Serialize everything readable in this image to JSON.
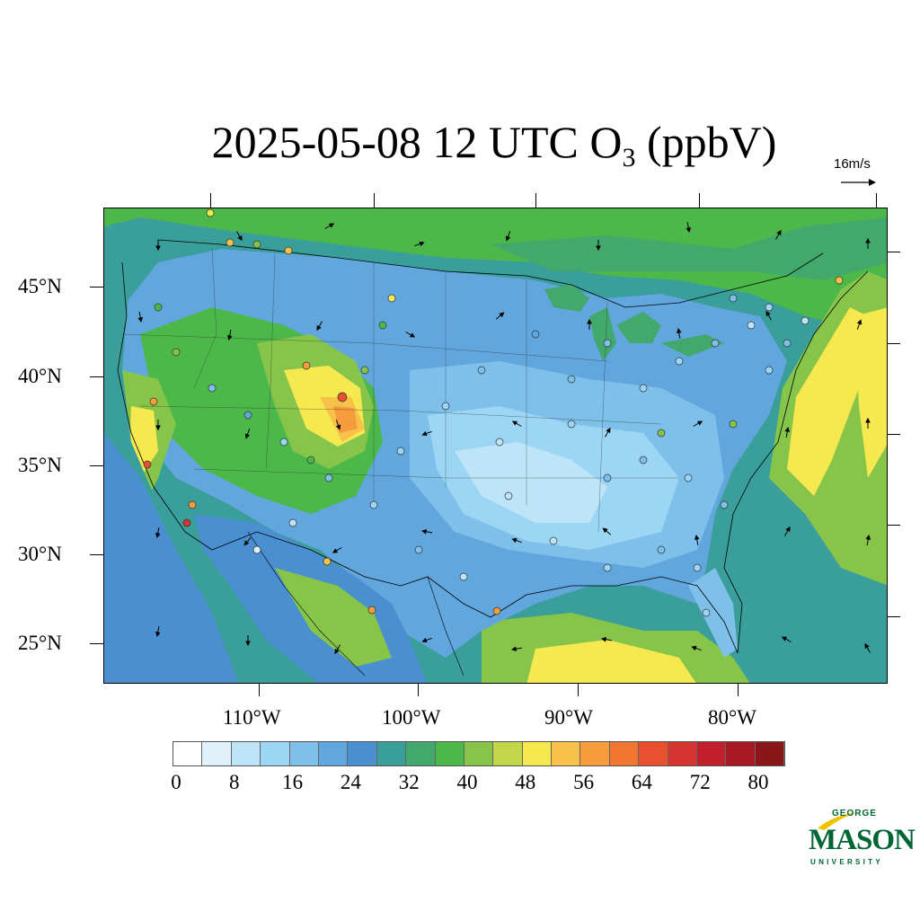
{
  "title": {
    "prefix": "2025-05-08 12 UTC O",
    "subscript": "3",
    "suffix": " (ppbV)"
  },
  "reference_vector": {
    "label": "16m/s"
  },
  "axes": {
    "latitude_labels": [
      "45°N",
      "40°N",
      "35°N",
      "30°N",
      "25°N"
    ],
    "longitude_labels": [
      "110°W",
      "100°W",
      "90°W",
      "80°W"
    ]
  },
  "colorbar": {
    "labels": [
      "0",
      "8",
      "16",
      "24",
      "32",
      "40",
      "48",
      "56",
      "64",
      "72",
      "80"
    ],
    "colors": [
      "#ffffff",
      "#dff1fa",
      "#bde5f7",
      "#9dd6f4",
      "#7ec0ea",
      "#61a7de",
      "#4a8fcf",
      "#3a9e9a",
      "#43a86b",
      "#4cb84a",
      "#86c44a",
      "#c2d64a",
      "#f6e84f",
      "#f8c24a",
      "#f79c3c",
      "#f27530",
      "#e85030",
      "#d63430",
      "#c21f2c",
      "#a81824",
      "#8b1619"
    ]
  },
  "logo": {
    "line1": "GEORGE",
    "line2": "MASON",
    "line3": "UNIVERSITY",
    "color": "#006633"
  }
}
